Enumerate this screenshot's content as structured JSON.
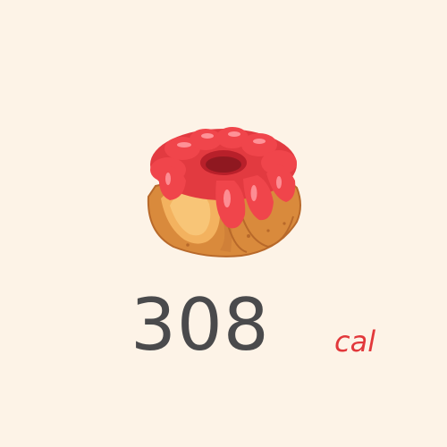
{
  "item": {
    "icon": "bundt-cake-icon",
    "calories_value": "308",
    "calories_unit": "cal"
  },
  "colors": {
    "background": "#fdf3e7",
    "value_text": "#4a4a4c",
    "unit_text": "#e2383b",
    "glaze": "#f0454b",
    "cake": "#e9a04f"
  }
}
